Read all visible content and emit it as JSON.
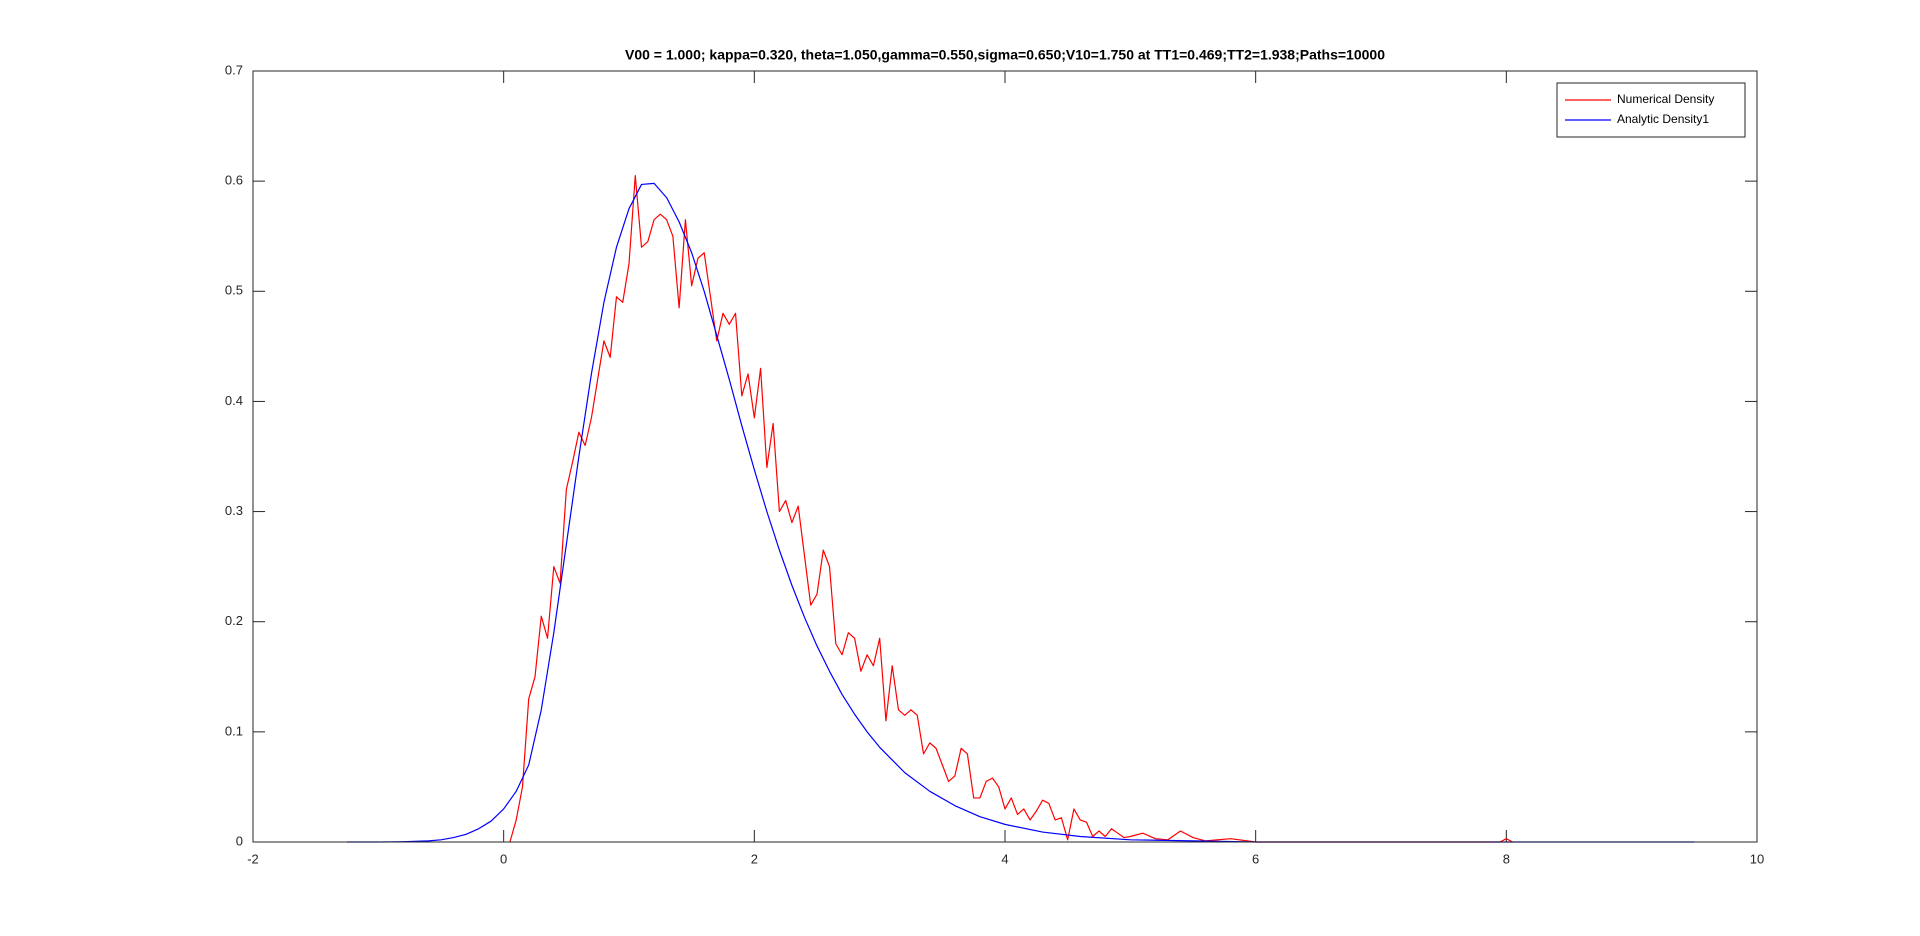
{
  "chart_data": {
    "type": "line",
    "title": "V00 = 1.000; kappa=0.320, theta=1.050,gamma=0.550,sigma=0.650;V10=1.750 at TT1=0.469;TT2=1.938;Paths=10000",
    "xlim": [
      -2,
      10
    ],
    "xticks": [
      -2,
      0,
      2,
      4,
      6,
      8,
      10
    ],
    "ylim": [
      0,
      0.7
    ],
    "yticks": [
      0,
      0.1,
      0.2,
      0.3,
      0.4,
      0.5,
      0.6,
      0.7
    ],
    "grid": false,
    "legend": "northeast",
    "series": [
      {
        "name": "Numerical Density",
        "color": "#ff0000",
        "x": [
          0.05,
          0.1,
          0.15,
          0.2,
          0.25,
          0.3,
          0.35,
          0.4,
          0.45,
          0.5,
          0.55,
          0.6,
          0.65,
          0.7,
          0.75,
          0.8,
          0.85,
          0.9,
          0.95,
          1.0,
          1.05,
          1.1,
          1.15,
          1.2,
          1.25,
          1.3,
          1.35,
          1.4,
          1.45,
          1.5,
          1.55,
          1.6,
          1.65,
          1.7,
          1.75,
          1.8,
          1.85,
          1.9,
          1.95,
          2.0,
          2.05,
          2.1,
          2.15,
          2.2,
          2.25,
          2.3,
          2.35,
          2.4,
          2.45,
          2.5,
          2.55,
          2.6,
          2.65,
          2.7,
          2.75,
          2.8,
          2.85,
          2.9,
          2.95,
          3.0,
          3.05,
          3.1,
          3.15,
          3.2,
          3.25,
          3.3,
          3.35,
          3.4,
          3.45,
          3.5,
          3.55,
          3.6,
          3.65,
          3.7,
          3.75,
          3.8,
          3.85,
          3.9,
          3.95,
          4.0,
          4.05,
          4.1,
          4.15,
          4.2,
          4.25,
          4.3,
          4.35,
          4.4,
          4.45,
          4.5,
          4.55,
          4.6,
          4.65,
          4.7,
          4.75,
          4.8,
          4.85,
          4.9,
          4.95,
          5.0,
          5.1,
          5.2,
          5.3,
          5.4,
          5.5,
          5.6,
          5.8,
          6.0,
          7.0,
          7.95,
          8.0,
          8.05
        ],
        "values": [
          0,
          0.02,
          0.05,
          0.13,
          0.15,
          0.205,
          0.185,
          0.25,
          0.235,
          0.32,
          0.345,
          0.372,
          0.36,
          0.385,
          0.42,
          0.455,
          0.44,
          0.495,
          0.49,
          0.525,
          0.605,
          0.54,
          0.545,
          0.565,
          0.57,
          0.565,
          0.55,
          0.485,
          0.565,
          0.505,
          0.53,
          0.535,
          0.495,
          0.455,
          0.48,
          0.47,
          0.48,
          0.405,
          0.425,
          0.385,
          0.43,
          0.34,
          0.38,
          0.3,
          0.31,
          0.29,
          0.305,
          0.26,
          0.215,
          0.225,
          0.265,
          0.25,
          0.18,
          0.17,
          0.19,
          0.185,
          0.155,
          0.17,
          0.16,
          0.185,
          0.11,
          0.16,
          0.12,
          0.115,
          0.12,
          0.115,
          0.08,
          0.09,
          0.085,
          0.07,
          0.055,
          0.06,
          0.085,
          0.08,
          0.04,
          0.04,
          0.055,
          0.058,
          0.05,
          0.03,
          0.04,
          0.025,
          0.03,
          0.02,
          0.028,
          0.038,
          0.035,
          0.02,
          0.022,
          0.002,
          0.03,
          0.02,
          0.018,
          0.005,
          0.01,
          0.005,
          0.012,
          0.008,
          0.004,
          0.005,
          0.008,
          0.003,
          0.002,
          0.01,
          0.004,
          0.001,
          0.003,
          0,
          0,
          0,
          0.003,
          0
        ]
      },
      {
        "name": "Analytic Density1",
        "color": "#0000ff",
        "x": [
          -1.25,
          -1,
          -0.8,
          -0.6,
          -0.5,
          -0.4,
          -0.3,
          -0.2,
          -0.1,
          0,
          0.1,
          0.2,
          0.3,
          0.4,
          0.5,
          0.6,
          0.7,
          0.8,
          0.9,
          1.0,
          1.1,
          1.2,
          1.3,
          1.4,
          1.5,
          1.6,
          1.7,
          1.8,
          1.9,
          2.0,
          2.1,
          2.2,
          2.3,
          2.4,
          2.5,
          2.6,
          2.7,
          2.8,
          2.9,
          3.0,
          3.2,
          3.4,
          3.6,
          3.8,
          4.0,
          4.3,
          4.6,
          5.0,
          5.5,
          6.0,
          7.0,
          8.0,
          9.5
        ],
        "values": [
          0,
          0,
          0.0003,
          0.001,
          0.002,
          0.004,
          0.007,
          0.012,
          0.019,
          0.03,
          0.046,
          0.07,
          0.12,
          0.19,
          0.27,
          0.35,
          0.425,
          0.49,
          0.54,
          0.575,
          0.597,
          0.598,
          0.585,
          0.563,
          0.535,
          0.5,
          0.46,
          0.42,
          0.378,
          0.338,
          0.3,
          0.265,
          0.233,
          0.204,
          0.178,
          0.155,
          0.134,
          0.116,
          0.1,
          0.086,
          0.063,
          0.046,
          0.033,
          0.023,
          0.016,
          0.009,
          0.005,
          0.002,
          0.001,
          0,
          0,
          0,
          0
        ]
      }
    ]
  }
}
